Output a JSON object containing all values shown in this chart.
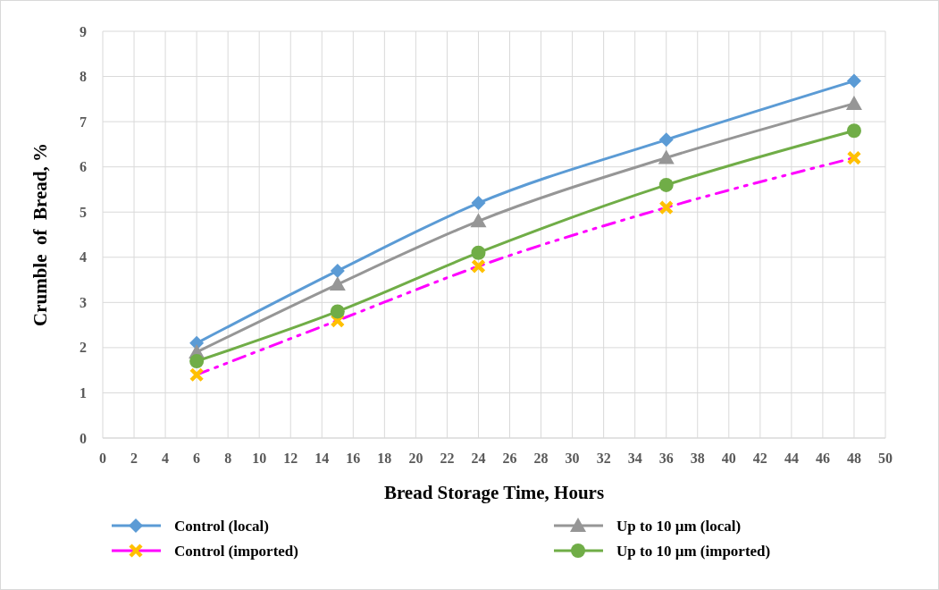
{
  "chart_data": {
    "type": "line",
    "xlabel": "Bread Storage Time, Hours",
    "ylabel": "Crumble  of  Bread, %",
    "x": [
      6,
      15,
      24,
      36,
      48
    ],
    "series": [
      {
        "name": "Control (local)",
        "color": "#5b9bd5",
        "marker": "diamond",
        "line_style": "solid",
        "values": [
          2.1,
          3.7,
          5.2,
          6.6,
          7.9
        ]
      },
      {
        "name": "Up to 10 µm (local)",
        "color": "#969696",
        "marker": "triangle",
        "line_style": "solid",
        "values": [
          1.9,
          3.4,
          4.8,
          6.2,
          7.4
        ]
      },
      {
        "name": "Control (imported)",
        "color": "#ff00ff",
        "marker": "cross",
        "line_style": "dashed",
        "values": [
          1.4,
          2.6,
          3.8,
          5.1,
          6.2
        ]
      },
      {
        "name": "Up to 10 µm (imported)",
        "color": "#70ad47",
        "marker": "circle",
        "line_style": "solid",
        "values": [
          1.7,
          2.8,
          4.1,
          5.6,
          6.8
        ]
      }
    ],
    "xlim": [
      0,
      50
    ],
    "xticks": [
      0,
      2,
      4,
      6,
      8,
      10,
      12,
      14,
      16,
      18,
      20,
      22,
      24,
      26,
      28,
      30,
      32,
      34,
      36,
      38,
      40,
      42,
      44,
      46,
      48,
      50
    ],
    "ylim": [
      0,
      9
    ],
    "yticks": [
      0,
      1,
      2,
      3,
      4,
      5,
      6,
      7,
      8,
      9
    ],
    "grid": true,
    "legend": "bottom"
  }
}
